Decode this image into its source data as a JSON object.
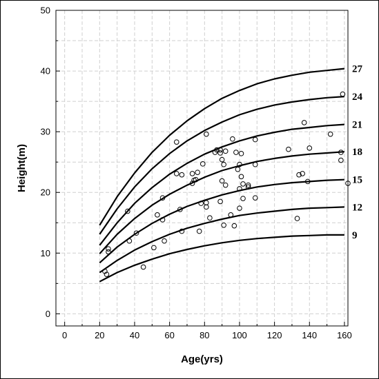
{
  "chart_data": {
    "type": "scatter",
    "xlabel": "Age(yrs)",
    "ylabel": "Height(m)",
    "xlim": [
      -5,
      162
    ],
    "ylim": [
      -2,
      50
    ],
    "xticks": [
      0,
      20,
      40,
      60,
      80,
      100,
      120,
      140,
      160
    ],
    "yticks": [
      0,
      10,
      20,
      30,
      40,
      50
    ],
    "grid": true,
    "curves": [
      {
        "label": "27",
        "x": [
          20,
          30,
          40,
          50,
          60,
          70,
          80,
          90,
          100,
          110,
          120,
          130,
          140,
          150,
          160
        ],
        "y": [
          14.6,
          19.3,
          23.2,
          26.6,
          29.4,
          31.8,
          33.8,
          35.5,
          36.8,
          37.9,
          38.7,
          39.3,
          39.8,
          40.1,
          40.4
        ]
      },
      {
        "label": "24",
        "x": [
          20,
          30,
          40,
          50,
          60,
          70,
          80,
          90,
          100,
          110,
          120,
          130,
          140,
          150,
          160
        ],
        "y": [
          13.1,
          17.3,
          20.9,
          23.9,
          26.4,
          28.5,
          30.2,
          31.6,
          32.8,
          33.7,
          34.4,
          34.9,
          35.3,
          35.6,
          35.8
        ]
      },
      {
        "label": "21",
        "x": [
          20,
          30,
          40,
          50,
          60,
          70,
          80,
          90,
          100,
          110,
          120,
          130,
          140,
          150,
          160
        ],
        "y": [
          11.3,
          15.0,
          18.2,
          20.8,
          23.0,
          24.8,
          26.3,
          27.5,
          28.5,
          29.3,
          29.9,
          30.4,
          30.7,
          31.0,
          31.2
        ]
      },
      {
        "label": "18",
        "x": [
          20,
          30,
          40,
          50,
          60,
          70,
          80,
          90,
          100,
          110,
          120,
          130,
          140,
          150,
          160
        ],
        "y": [
          9.9,
          13.1,
          15.7,
          17.9,
          19.7,
          21.2,
          22.5,
          23.6,
          24.4,
          25.1,
          25.6,
          26.0,
          26.3,
          26.5,
          26.7
        ]
      },
      {
        "label": "15",
        "x": [
          20,
          30,
          40,
          50,
          60,
          70,
          80,
          90,
          100,
          110,
          120,
          130,
          140,
          150,
          160
        ],
        "y": [
          8.4,
          11.0,
          13.1,
          14.9,
          16.4,
          17.7,
          18.7,
          19.6,
          20.3,
          20.9,
          21.3,
          21.6,
          21.8,
          22.0,
          22.1
        ]
      },
      {
        "label": "12",
        "x": [
          20,
          30,
          40,
          50,
          60,
          70,
          80,
          90,
          100,
          110,
          120,
          130,
          140,
          150,
          160
        ],
        "y": [
          6.8,
          8.8,
          10.5,
          11.9,
          13.1,
          14.1,
          14.9,
          15.6,
          16.2,
          16.6,
          16.9,
          17.2,
          17.4,
          17.5,
          17.6
        ]
      },
      {
        "label": "9",
        "x": [
          20,
          30,
          40,
          50,
          60,
          70,
          80,
          90,
          100,
          110,
          120,
          130,
          140,
          150,
          160
        ],
        "y": [
          5.3,
          6.8,
          8.0,
          9.0,
          9.9,
          10.6,
          11.2,
          11.7,
          12.1,
          12.4,
          12.6,
          12.8,
          12.9,
          13.0,
          13.0
        ]
      }
    ],
    "points": [
      [
        23,
        7.0
      ],
      [
        24,
        6.5
      ],
      [
        25,
        10.7
      ],
      [
        25,
        10.2
      ],
      [
        36,
        16.9
      ],
      [
        37,
        12.0
      ],
      [
        41,
        13.3
      ],
      [
        45,
        7.7
      ],
      [
        51,
        10.9
      ],
      [
        53,
        16.3
      ],
      [
        56,
        19.1
      ],
      [
        56,
        15.5
      ],
      [
        57,
        12.0
      ],
      [
        64,
        28.3
      ],
      [
        64,
        23.1
      ],
      [
        66,
        17.2
      ],
      [
        67,
        22.9
      ],
      [
        67,
        13.6
      ],
      [
        73,
        21.5
      ],
      [
        73,
        23.1
      ],
      [
        74,
        22.0
      ],
      [
        75,
        22.1
      ],
      [
        76,
        23.3
      ],
      [
        77,
        13.6
      ],
      [
        78,
        18.2
      ],
      [
        79,
        24.7
      ],
      [
        81,
        29.6
      ],
      [
        81,
        18.3
      ],
      [
        81,
        17.6
      ],
      [
        83,
        15.8
      ],
      [
        86,
        26.6
      ],
      [
        87,
        27.0
      ],
      [
        89,
        27.0
      ],
      [
        89,
        18.5
      ],
      [
        89,
        26.5
      ],
      [
        90,
        21.9
      ],
      [
        90,
        25.4
      ],
      [
        91,
        24.6
      ],
      [
        91,
        14.6
      ],
      [
        92,
        26.8
      ],
      [
        92,
        21.2
      ],
      [
        95,
        16.3
      ],
      [
        96,
        28.8
      ],
      [
        97,
        14.5
      ],
      [
        98,
        26.6
      ],
      [
        99,
        23.8
      ],
      [
        100,
        24.6
      ],
      [
        100,
        20.6
      ],
      [
        100,
        17.4
      ],
      [
        101,
        22.6
      ],
      [
        101,
        26.4
      ],
      [
        102,
        19.0
      ],
      [
        102,
        21.4
      ],
      [
        105,
        21.2
      ],
      [
        105,
        20.9
      ],
      [
        109,
        28.7
      ],
      [
        109,
        24.6
      ],
      [
        109,
        19.1
      ],
      [
        128,
        27.1
      ],
      [
        133,
        15.7
      ],
      [
        134,
        22.9
      ],
      [
        136,
        23.1
      ],
      [
        137,
        31.5
      ],
      [
        139,
        21.8
      ],
      [
        140,
        27.3
      ],
      [
        152,
        29.6
      ],
      [
        158,
        26.6
      ],
      [
        158,
        25.3
      ],
      [
        159,
        36.2
      ],
      [
        162,
        21.5
      ]
    ]
  }
}
